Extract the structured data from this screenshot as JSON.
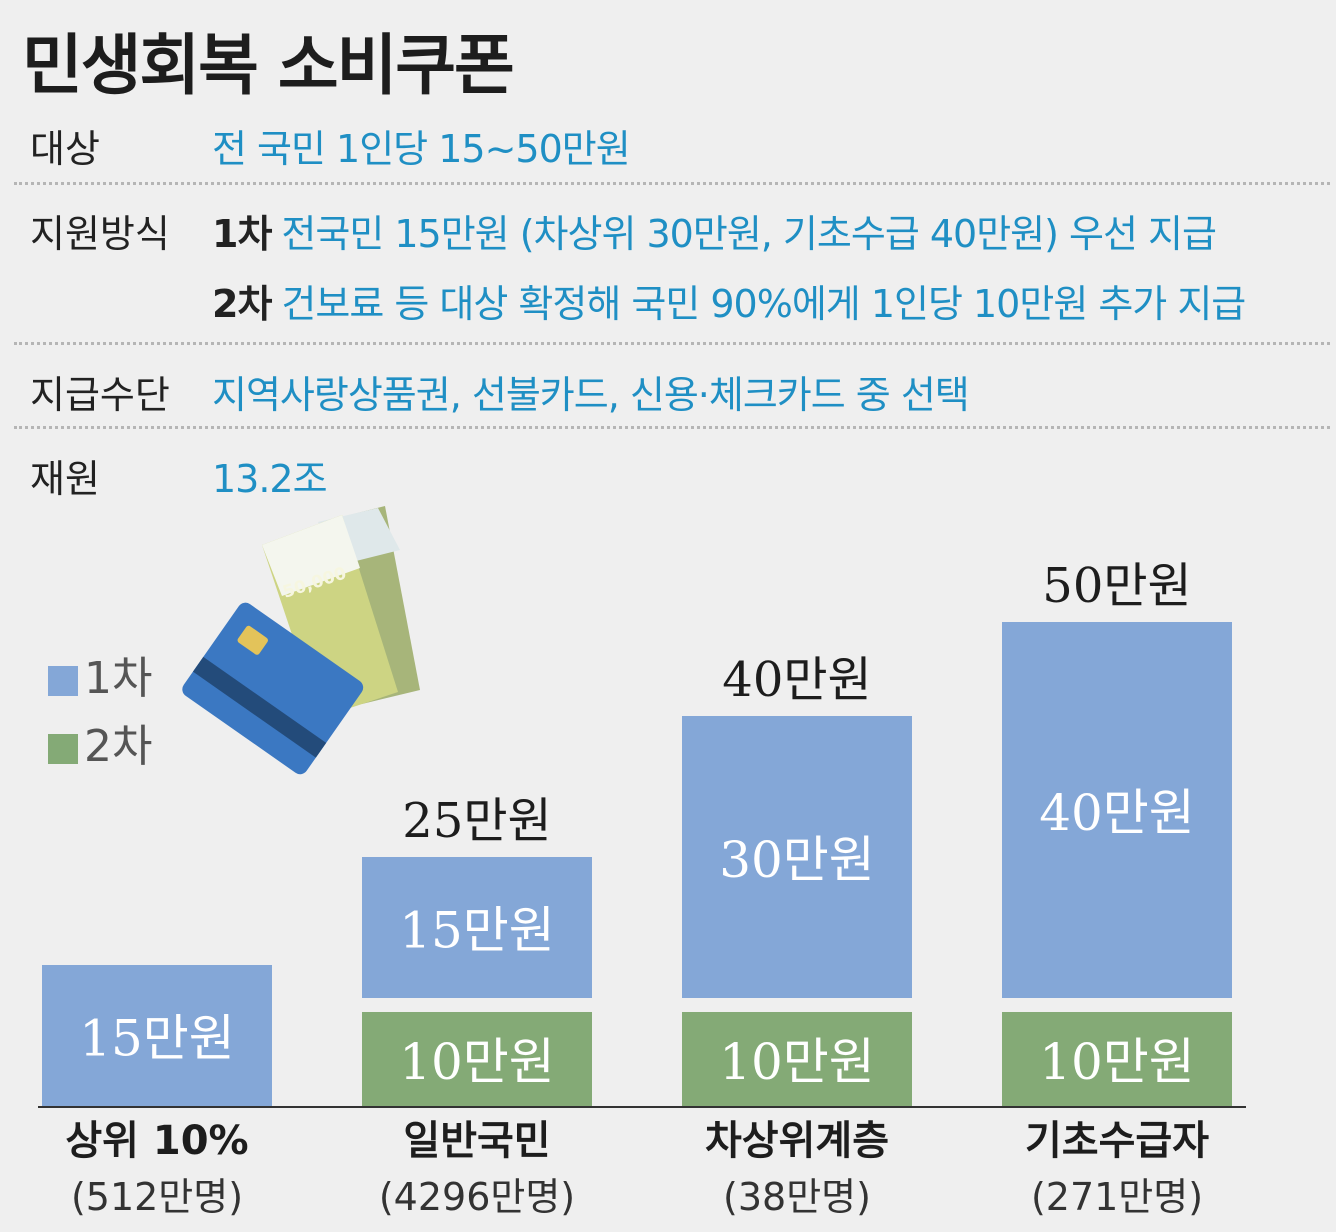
{
  "title": "민생회복 소비쿠폰",
  "info": {
    "target": {
      "label": "대상",
      "value": "전 국민 1인당 15~50만원"
    },
    "method": {
      "label": "지원방식",
      "rounds": [
        {
          "step": "1차",
          "text": "전국민 15만원 (차상위 30만원, 기초수급 40만원) 우선 지급"
        },
        {
          "step": "2차",
          "text": "건보료 등 대상 확정해 국민 90%에게 1인당 10만원 추가 지급"
        }
      ]
    },
    "means": {
      "label": "지급수단",
      "value": "지역사랑상품권, 선불카드, 신용·체크카드 중 선택"
    },
    "funding": {
      "label": "재원",
      "value": "13.2조"
    }
  },
  "colors": {
    "round1": "#84a7d7",
    "round2": "#84aa76",
    "accent": "#1f8fc4"
  },
  "illustration": {
    "card_icon": "credit-card-icon",
    "banknote_icon": "banknote-icon",
    "banknote_text": "50,000"
  },
  "chart_data": {
    "type": "bar",
    "stacked": true,
    "unit": "만원",
    "categories": [
      "상위 10%",
      "일반국민",
      "차상위계층",
      "기초수급자"
    ],
    "sublabels": [
      "(512만명)",
      "(4296만명)",
      "(38만명)",
      "(271만명)"
    ],
    "series": [
      {
        "name": "1차",
        "values": [
          15,
          15,
          30,
          40
        ],
        "labels": [
          "15만원",
          "15만원",
          "30만원",
          "40만원"
        ]
      },
      {
        "name": "2차",
        "values": [
          0,
          10,
          10,
          10
        ],
        "labels": [
          "",
          "10만원",
          "10만원",
          "10만원"
        ]
      }
    ],
    "totals": [
      "",
      "25만원",
      "40만원",
      "50만원"
    ],
    "ylim": [
      0,
      50
    ],
    "legend_position": "left"
  }
}
